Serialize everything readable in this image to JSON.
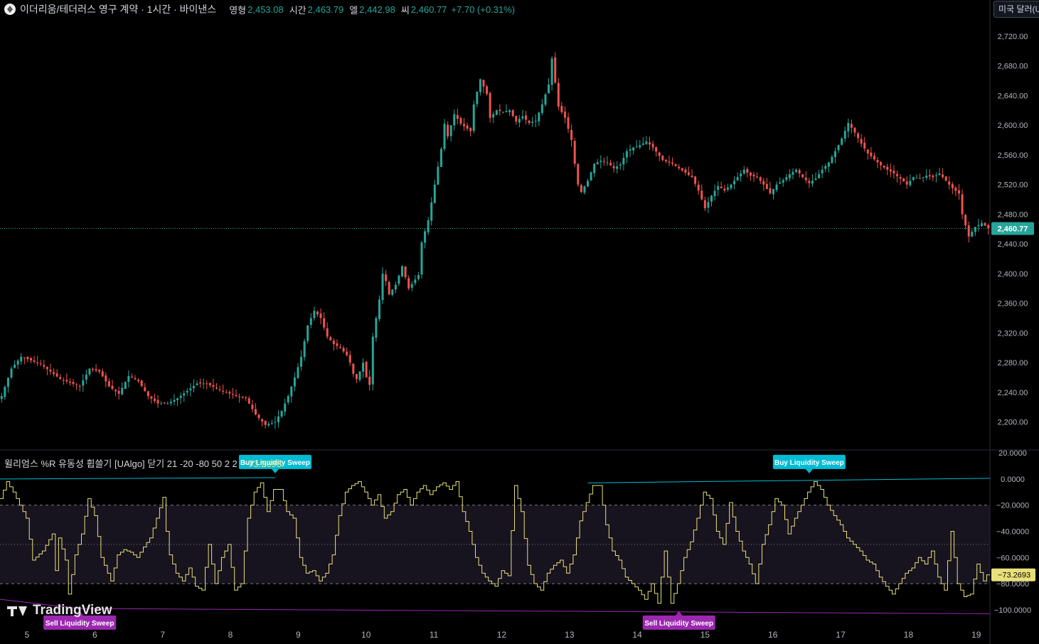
{
  "header": {
    "symbol_title": "이더리움/테더러스 영구 계약 · 1시간 · 바이낸스",
    "open_label": "영형",
    "open": "2,453.08",
    "high_label": "시간",
    "high": "2,463.79",
    "low_label": "엘",
    "low": "2,442.98",
    "close_label": "씨",
    "close": "2,460.77",
    "change": "+7.70 (+0.31%)"
  },
  "currency_button": "미국 달러(U",
  "indicator": {
    "legend": "윌리엄스 %R 유동성 휩쓸기 [UAlgo] 닫기 21 -20 -80 50 2 2",
    "last_value": "−73.2693",
    "axis_badge": "−73.2693"
  },
  "brand": "TradingView",
  "colors": {
    "up": "#26a69a",
    "down": "#ef5350",
    "wr_line": "#e8e17a",
    "buy_sweep": "#00bcd4",
    "sell_sweep": "#9c27b0"
  },
  "chart_data": [
    {
      "type": "candlestick",
      "price_axis_ticks": [
        "2,720.00",
        "2,680.00",
        "2,640.00",
        "2,600.00",
        "2,560.00",
        "2,520.00",
        "2,480.00",
        "2,440.00",
        "2,400.00",
        "2,360.00",
        "2,320.00",
        "2,280.00",
        "2,240.00",
        "2,200.00"
      ],
      "ylim": [
        2170,
        2740
      ],
      "last_price": "2,460.77",
      "x_tick_labels": [
        "5",
        "6",
        "7",
        "8",
        "9",
        "10",
        "11",
        "12",
        "13",
        "14",
        "15",
        "16",
        "17",
        "18",
        "19"
      ],
      "close_path": [
        [
          0,
          2235
        ],
        [
          3,
          2272
        ],
        [
          6,
          2288
        ],
        [
          9,
          2283
        ],
        [
          12,
          2278
        ],
        [
          18,
          2258
        ],
        [
          24,
          2248
        ],
        [
          27,
          2272
        ],
        [
          30,
          2268
        ],
        [
          33,
          2248
        ],
        [
          36,
          2238
        ],
        [
          39,
          2262
        ],
        [
          42,
          2255
        ],
        [
          45,
          2235
        ],
        [
          48,
          2225
        ],
        [
          51,
          2225
        ],
        [
          54,
          2232
        ],
        [
          57,
          2242
        ],
        [
          60,
          2252
        ],
        [
          63,
          2252
        ],
        [
          66,
          2245
        ],
        [
          69,
          2240
        ],
        [
          72,
          2235
        ],
        [
          75,
          2232
        ],
        [
          78,
          2210
        ],
        [
          81,
          2196
        ],
        [
          84,
          2200
        ],
        [
          86,
          2215
        ],
        [
          88,
          2235
        ],
        [
          90,
          2260
        ],
        [
          92,
          2288
        ],
        [
          94,
          2330
        ],
        [
          96,
          2350
        ],
        [
          98,
          2340
        ],
        [
          100,
          2315
        ],
        [
          102,
          2305
        ],
        [
          104,
          2300
        ],
        [
          106,
          2290
        ],
        [
          107,
          2280
        ],
        [
          108,
          2265
        ],
        [
          109,
          2258
        ],
        [
          110,
          2268
        ],
        [
          111,
          2280
        ],
        [
          112,
          2260
        ],
        [
          113,
          2250
        ],
        [
          114,
          2315
        ],
        [
          116,
          2365
        ],
        [
          117,
          2400
        ],
        [
          118,
          2390
        ],
        [
          119,
          2372
        ],
        [
          121,
          2385
        ],
        [
          123,
          2410
        ],
        [
          125,
          2380
        ],
        [
          127,
          2392
        ],
        [
          128,
          2398
        ],
        [
          129,
          2442
        ],
        [
          131,
          2472
        ],
        [
          133,
          2520
        ],
        [
          135,
          2568
        ],
        [
          136,
          2602
        ],
        [
          137,
          2585
        ],
        [
          139,
          2615
        ],
        [
          141,
          2602
        ],
        [
          144,
          2592
        ],
        [
          145,
          2628
        ],
        [
          147,
          2662
        ],
        [
          149,
          2642
        ],
        [
          150,
          2610
        ],
        [
          152,
          2620
        ],
        [
          154,
          2618
        ],
        [
          156,
          2620
        ],
        [
          158,
          2605
        ],
        [
          160,
          2612
        ],
        [
          162,
          2603
        ],
        [
          164,
          2606
        ],
        [
          166,
          2628
        ],
        [
          168,
          2655
        ],
        [
          169,
          2690
        ],
        [
          171,
          2625
        ],
        [
          173,
          2610
        ],
        [
          175,
          2580
        ],
        [
          176,
          2548
        ],
        [
          177,
          2520
        ],
        [
          178,
          2510
        ],
        [
          180,
          2525
        ],
        [
          182,
          2548
        ],
        [
          184,
          2552
        ],
        [
          186,
          2550
        ],
        [
          188,
          2542
        ],
        [
          190,
          2547
        ],
        [
          192,
          2565
        ],
        [
          194,
          2570
        ],
        [
          196,
          2573
        ],
        [
          198,
          2578
        ],
        [
          200,
          2570
        ],
        [
          203,
          2553
        ],
        [
          206,
          2548
        ],
        [
          208,
          2542
        ],
        [
          210,
          2536
        ],
        [
          212,
          2530
        ],
        [
          214,
          2512
        ],
        [
          216,
          2488
        ],
        [
          218,
          2505
        ],
        [
          220,
          2518
        ],
        [
          222,
          2512
        ],
        [
          224,
          2520
        ],
        [
          226,
          2530
        ],
        [
          228,
          2540
        ],
        [
          230,
          2532
        ],
        [
          232,
          2530
        ],
        [
          234,
          2520
        ],
        [
          236,
          2508
        ],
        [
          238,
          2520
        ],
        [
          240,
          2526
        ],
        [
          242,
          2534
        ],
        [
          244,
          2540
        ],
        [
          246,
          2530
        ],
        [
          248,
          2522
        ],
        [
          250,
          2528
        ],
        [
          252,
          2540
        ],
        [
          254,
          2550
        ],
        [
          256,
          2565
        ],
        [
          258,
          2582
        ],
        [
          260,
          2603
        ],
        [
          262,
          2590
        ],
        [
          264,
          2575
        ],
        [
          266,
          2562
        ],
        [
          268,
          2554
        ],
        [
          270,
          2546
        ],
        [
          272,
          2540
        ],
        [
          274,
          2535
        ],
        [
          276,
          2528
        ],
        [
          278,
          2520
        ],
        [
          280,
          2530
        ],
        [
          282,
          2528
        ],
        [
          284,
          2532
        ],
        [
          286,
          2530
        ],
        [
          288,
          2535
        ],
        [
          290,
          2525
        ],
        [
          292,
          2515
        ],
        [
          294,
          2508
        ],
        [
          295,
          2480
        ],
        [
          297,
          2450
        ],
        [
          299,
          2463
        ],
        [
          301,
          2468
        ],
        [
          303,
          2461
        ]
      ]
    },
    {
      "type": "line",
      "name": "윌리엄스 %R",
      "axis_ticks": [
        "20.0000",
        "0.0000",
        "−20.0000",
        "−40.0000",
        "−60.0000",
        "−80.0000",
        "−100.0000"
      ],
      "ylim": [
        -112,
        20
      ],
      "levels": [
        -20,
        -50,
        -80
      ],
      "wr_path": [
        [
          0,
          -15
        ],
        [
          2,
          -2
        ],
        [
          4,
          -10
        ],
        [
          8,
          -30
        ],
        [
          10,
          -62
        ],
        [
          13,
          -55
        ],
        [
          16,
          -42
        ],
        [
          17,
          -70
        ],
        [
          18,
          -45
        ],
        [
          20,
          -62
        ],
        [
          21,
          -88
        ],
        [
          23,
          -58
        ],
        [
          25,
          -42
        ],
        [
          27,
          -15
        ],
        [
          29,
          -28
        ],
        [
          31,
          -60
        ],
        [
          34,
          -78
        ],
        [
          36,
          -58
        ],
        [
          38,
          -54
        ],
        [
          40,
          -56
        ],
        [
          42,
          -60
        ],
        [
          44,
          -52
        ],
        [
          46,
          -45
        ],
        [
          48,
          -30
        ],
        [
          50,
          -14
        ],
        [
          51,
          -40
        ],
        [
          52,
          -58
        ],
        [
          54,
          -72
        ],
        [
          56,
          -78
        ],
        [
          58,
          -68
        ],
        [
          60,
          -82
        ],
        [
          62,
          -85
        ],
        [
          64,
          -50
        ],
        [
          66,
          -80
        ],
        [
          68,
          -60
        ],
        [
          70,
          -50
        ],
        [
          72,
          -85
        ],
        [
          74,
          -80
        ],
        [
          76,
          -30
        ],
        [
          78,
          -10
        ],
        [
          80,
          -3
        ],
        [
          82,
          -25
        ],
        [
          84,
          -8
        ],
        [
          86,
          -8
        ],
        [
          88,
          -25
        ],
        [
          90,
          -30
        ],
        [
          92,
          -60
        ],
        [
          94,
          -72
        ],
        [
          96,
          -70
        ],
        [
          98,
          -78
        ],
        [
          100,
          -72
        ],
        [
          102,
          -58
        ],
        [
          104,
          -28
        ],
        [
          106,
          -10
        ],
        [
          108,
          -5
        ],
        [
          110,
          -2
        ],
        [
          112,
          -10
        ],
        [
          114,
          -20
        ],
        [
          116,
          -12
        ],
        [
          118,
          -30
        ],
        [
          120,
          -25
        ],
        [
          122,
          -12
        ],
        [
          124,
          -8
        ],
        [
          126,
          -20
        ],
        [
          128,
          -10
        ],
        [
          130,
          -5
        ],
        [
          132,
          -12
        ],
        [
          134,
          -6
        ],
        [
          136,
          -3
        ],
        [
          138,
          -8
        ],
        [
          140,
          -2
        ],
        [
          142,
          -25
        ],
        [
          144,
          -40
        ],
        [
          146,
          -60
        ],
        [
          148,
          -72
        ],
        [
          150,
          -78
        ],
        [
          152,
          -82
        ],
        [
          154,
          -70
        ],
        [
          156,
          -74
        ],
        [
          158,
          -5
        ],
        [
          160,
          -25
        ],
        [
          162,
          -66
        ],
        [
          164,
          -80
        ],
        [
          166,
          -85
        ],
        [
          168,
          -72
        ],
        [
          170,
          -66
        ],
        [
          172,
          -62
        ],
        [
          174,
          -72
        ],
        [
          176,
          -58
        ],
        [
          178,
          -32
        ],
        [
          180,
          -18
        ],
        [
          182,
          -5
        ],
        [
          184,
          -5
        ],
        [
          186,
          -35
        ],
        [
          188,
          -55
        ],
        [
          190,
          -62
        ],
        [
          192,
          -75
        ],
        [
          194,
          -80
        ],
        [
          196,
          -85
        ],
        [
          198,
          -92
        ],
        [
          200,
          -80
        ],
        [
          202,
          -95
        ],
        [
          204,
          -55
        ],
        [
          206,
          -95
        ],
        [
          208,
          -80
        ],
        [
          210,
          -60
        ],
        [
          212,
          -48
        ],
        [
          214,
          -30
        ],
        [
          216,
          -10
        ],
        [
          218,
          -15
        ],
        [
          220,
          -40
        ],
        [
          222,
          -50
        ],
        [
          224,
          -18
        ],
        [
          226,
          -40
        ],
        [
          228,
          -55
        ],
        [
          230,
          -65
        ],
        [
          232,
          -80
        ],
        [
          234,
          -50
        ],
        [
          236,
          -35
        ],
        [
          238,
          -15
        ],
        [
          240,
          -20
        ],
        [
          242,
          -42
        ],
        [
          244,
          -30
        ],
        [
          246,
          -20
        ],
        [
          248,
          -10
        ],
        [
          250,
          -2
        ],
        [
          252,
          -8
        ],
        [
          254,
          -20
        ],
        [
          256,
          -28
        ],
        [
          258,
          -35
        ],
        [
          260,
          -45
        ],
        [
          262,
          -50
        ],
        [
          264,
          -55
        ],
        [
          266,
          -62
        ],
        [
          268,
          -65
        ],
        [
          270,
          -75
        ],
        [
          272,
          -82
        ],
        [
          274,
          -88
        ],
        [
          276,
          -80
        ],
        [
          278,
          -72
        ],
        [
          280,
          -68
        ],
        [
          282,
          -60
        ],
        [
          284,
          -65
        ],
        [
          286,
          -55
        ],
        [
          288,
          -75
        ],
        [
          290,
          -85
        ],
        [
          292,
          -40
        ],
        [
          294,
          -80
        ],
        [
          296,
          -90
        ],
        [
          298,
          -88
        ],
        [
          300,
          -65
        ],
        [
          302,
          -78
        ],
        [
          303,
          -73.2693
        ]
      ],
      "annotations": [
        {
          "label": "Buy Liquidity Sweep",
          "type": "buy",
          "at": 84,
          "value": 0
        },
        {
          "label": "Buy Liquidity Sweep",
          "type": "buy",
          "at": 248,
          "value": 0
        },
        {
          "label": "Sell Liquidity Sweep",
          "type": "sell",
          "at": 24,
          "value": -100
        },
        {
          "label": "Sell Liquidity Sweep",
          "type": "sell",
          "at": 208,
          "value": -100
        }
      ]
    }
  ]
}
